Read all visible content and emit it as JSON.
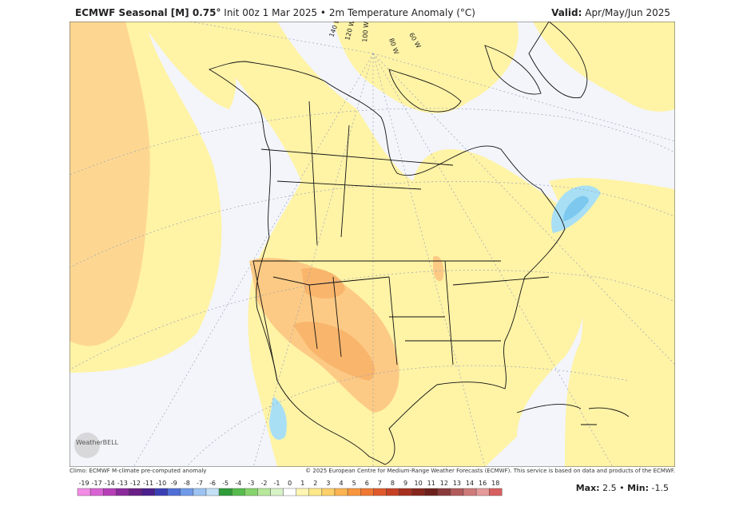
{
  "header": {
    "title_bold": "ECMWF Seasonal [M] 0.75°",
    "title_rest": "Init 00z 1 Mar 2025 • 2m Temperature Anomaly (°C)",
    "valid_label": "Valid:",
    "valid_value": "Apr/May/Jun 2025"
  },
  "map": {
    "longitude_labels": [
      "140 W",
      "120 W",
      "100 W",
      "80 W",
      "60 W"
    ],
    "logo": "WeatherBELL"
  },
  "footer": {
    "climo": "Climo: ECMWF M-climate pre-computed anomaly",
    "copyright": "© 2025 European Centre for Medium-Range Weather Forecasts (ECMWF). This service is based on data and products of the ECMWF.",
    "max_label": "Max:",
    "max_value": 2.5,
    "separator": "•",
    "min_label": "Min:",
    "min_value": -1.5
  },
  "colorbar": {
    "labels": [
      -19,
      -17,
      -14,
      -13,
      -12,
      -11,
      -10,
      -9,
      -8,
      -7,
      -6,
      -5,
      -4,
      -3,
      -2,
      -1,
      0,
      1,
      2,
      3,
      4,
      5,
      6,
      7,
      8,
      9,
      10,
      11,
      12,
      13,
      14,
      16,
      18
    ],
    "colors": [
      "#f28ce6",
      "#d863d3",
      "#b63fb8",
      "#8c2a9c",
      "#6a1f86",
      "#4b1f8c",
      "#3a3fb4",
      "#4f6fd6",
      "#6f9ae8",
      "#9cc3f2",
      "#c3e0f7",
      "#2f9c3a",
      "#56bb4d",
      "#86d36b",
      "#b6e79b",
      "#d8f2c8",
      "#ffffff",
      "#fff6b3",
      "#ffe98a",
      "#fdd069",
      "#fbb451",
      "#f7963f",
      "#ef7833",
      "#df5a2b",
      "#c64125",
      "#a63020",
      "#87261d",
      "#6c2019",
      "#8a3a3a",
      "#b25a5a",
      "#cf7a7a",
      "#e59a9a",
      "#d86060"
    ]
  }
}
